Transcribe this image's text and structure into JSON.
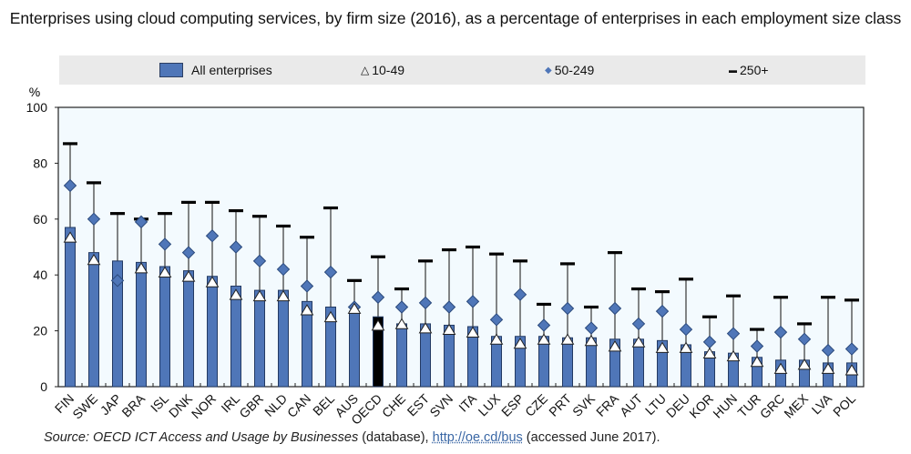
{
  "chart_data": {
    "type": "bar",
    "title": "Enterprises using cloud computing services, by firm size (2016), as a percentage of enterprises in each employment size class",
    "xlabel": "",
    "ylabel": "%",
    "ylim": [
      0,
      100
    ],
    "yticks": [
      0,
      20,
      40,
      60,
      80,
      100
    ],
    "grid": false,
    "legend_position": "top",
    "highlight_category": "OECD",
    "categories": [
      "FIN",
      "SWE",
      "JAP",
      "BRA",
      "ISL",
      "DNK",
      "NOR",
      "IRL",
      "GBR",
      "NLD",
      "CAN",
      "BEL",
      "AUS",
      "OECD",
      "CHE",
      "EST",
      "SVN",
      "ITA",
      "LUX",
      "ESP",
      "CZE",
      "PRT",
      "SVK",
      "FRA",
      "AUT",
      "LTU",
      "DEU",
      "KOR",
      "HUN",
      "TUR",
      "GRC",
      "MEX",
      "LVA",
      "POL"
    ],
    "series": [
      {
        "name": "All enterprises",
        "marker": "bar",
        "values": [
          57,
          48,
          45,
          44.5,
          43,
          41.5,
          39.5,
          36,
          34.5,
          34.5,
          30.5,
          28.5,
          27,
          25,
          22.5,
          22.5,
          22,
          21.5,
          18,
          18,
          18,
          17.5,
          17.5,
          17,
          17,
          16.5,
          15,
          12.5,
          12,
          10.5,
          9.5,
          9.5,
          8.5,
          8.5
        ]
      },
      {
        "name": "10-49",
        "marker": "triangle",
        "values": [
          53,
          45,
          null,
          42,
          40.5,
          39,
          37,
          32.5,
          32,
          32,
          27,
          24.5,
          27.5,
          21.5,
          22,
          20.5,
          20,
          19,
          16.5,
          15,
          16.5,
          16.5,
          16,
          14,
          15.5,
          13.5,
          13.5,
          11.5,
          10.5,
          8.5,
          6,
          7.5,
          6,
          5.5
        ]
      },
      {
        "name": "50-249",
        "marker": "diamond",
        "values": [
          72,
          60,
          38,
          59,
          51,
          48,
          54,
          50,
          45,
          42,
          36,
          41,
          28.5,
          32,
          28.5,
          30,
          28.5,
          30.5,
          24,
          33,
          22,
          28,
          21,
          28,
          22.5,
          27,
          20.5,
          16,
          19,
          14.5,
          19.5,
          17,
          13,
          13.5
        ]
      },
      {
        "name": "250+",
        "marker": "dash",
        "values": [
          87,
          73,
          62,
          60,
          62,
          66,
          66,
          63,
          61,
          57.5,
          53.5,
          64,
          38,
          46.5,
          35,
          45,
          49,
          50,
          47.5,
          45,
          29.5,
          44,
          28.5,
          48,
          35,
          34,
          38.5,
          25,
          32.5,
          20.5,
          32,
          22.5,
          32,
          31
        ]
      }
    ]
  },
  "legend": {
    "items": [
      {
        "label": "All enterprises",
        "glyph": ""
      },
      {
        "label": "10-49",
        "glyph": "△"
      },
      {
        "label": "50-249",
        "glyph": "◆"
      },
      {
        "label": "250+",
        "glyph": "▬"
      }
    ]
  },
  "colors": {
    "bar": "#4f76b8",
    "bar_border": "#233a63",
    "highlight_bar": "#000000",
    "plot_bg": "#f3fafe",
    "legend_bg": "#eaeaea",
    "diamond": "#4f76b8",
    "link": "#3a67a5"
  },
  "source": {
    "prefix": "Source: OECD ICT Access and Usage by Businesses",
    "middle": " (database), ",
    "link_text": "http://oe.cd/bus",
    "suffix": " (accessed June 2017)."
  }
}
